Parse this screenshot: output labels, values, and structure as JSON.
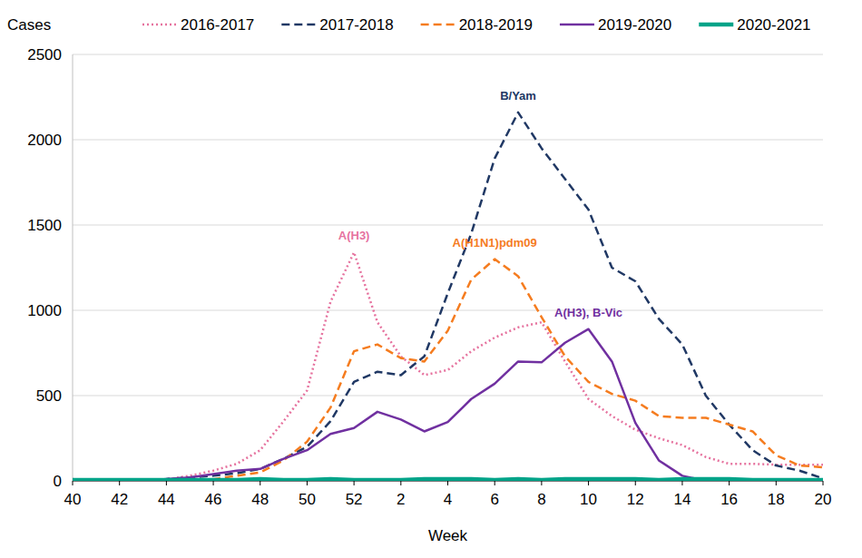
{
  "chart_data": {
    "type": "line",
    "y_label": "Cases",
    "x_label": "Week",
    "categories": [
      "40",
      null,
      "42",
      null,
      "44",
      null,
      "46",
      null,
      "48",
      null,
      "50",
      null,
      "52",
      null,
      "2",
      null,
      "4",
      null,
      "6",
      null,
      "8",
      null,
      "10",
      null,
      "12",
      null,
      "14",
      null,
      "16",
      null,
      "18",
      null,
      "20"
    ],
    "series": [
      {
        "name": "2016-2017",
        "color": "#e6739f",
        "line_style": "dotted",
        "values": [
          10,
          5,
          5,
          5,
          10,
          30,
          60,
          100,
          180,
          350,
          530,
          1050,
          1340,
          930,
          730,
          620,
          650,
          760,
          840,
          900,
          930,
          700,
          480,
          380,
          300,
          250,
          210,
          140,
          100,
          100,
          95,
          95,
          95
        ]
      },
      {
        "name": "2017-2018",
        "color": "#203864",
        "line_style": "dashed",
        "values": [
          5,
          5,
          5,
          5,
          10,
          20,
          30,
          45,
          70,
          130,
          200,
          350,
          580,
          640,
          620,
          730,
          1100,
          1450,
          1890,
          2160,
          1950,
          1770,
          1590,
          1250,
          1170,
          950,
          800,
          500,
          330,
          180,
          90,
          60,
          15
        ]
      },
      {
        "name": "2018-2019",
        "color": "#f57c1f",
        "line_style": "dashed",
        "values": [
          0,
          0,
          0,
          0,
          0,
          5,
          10,
          30,
          50,
          120,
          230,
          430,
          760,
          800,
          720,
          700,
          880,
          1180,
          1300,
          1200,
          960,
          730,
          580,
          510,
          470,
          380,
          370,
          370,
          330,
          290,
          150,
          90,
          80
        ]
      },
      {
        "name": "2019-2020",
        "color": "#7030a0",
        "line_style": "solid",
        "values": [
          0,
          0,
          0,
          0,
          10,
          20,
          40,
          60,
          70,
          130,
          180,
          275,
          310,
          405,
          360,
          290,
          345,
          480,
          570,
          700,
          695,
          810,
          890,
          700,
          340,
          120,
          30,
          0,
          null,
          null,
          null,
          null,
          null
        ]
      },
      {
        "name": "2020-2021",
        "color": "#00a388",
        "line_style": "solid",
        "values": [
          5,
          5,
          5,
          5,
          5,
          5,
          5,
          5,
          10,
          5,
          5,
          10,
          5,
          5,
          5,
          10,
          10,
          10,
          5,
          10,
          5,
          10,
          10,
          10,
          10,
          5,
          10,
          10,
          10,
          5,
          5,
          5,
          5
        ]
      }
    ],
    "annotations": [
      {
        "text": "A(H3)",
        "series": "2016-2017"
      },
      {
        "text": "B/Yam",
        "series": "2017-2018"
      },
      {
        "text": "A(H1N1)pdm09",
        "series": "2018-2019"
      },
      {
        "text": "A(H3), B-Vic",
        "series": "2019-2020"
      }
    ],
    "ylim": [
      0,
      2500
    ],
    "yticks": [
      0,
      500,
      1000,
      1500,
      2000,
      2500
    ],
    "grid": true,
    "legend": "top"
  }
}
